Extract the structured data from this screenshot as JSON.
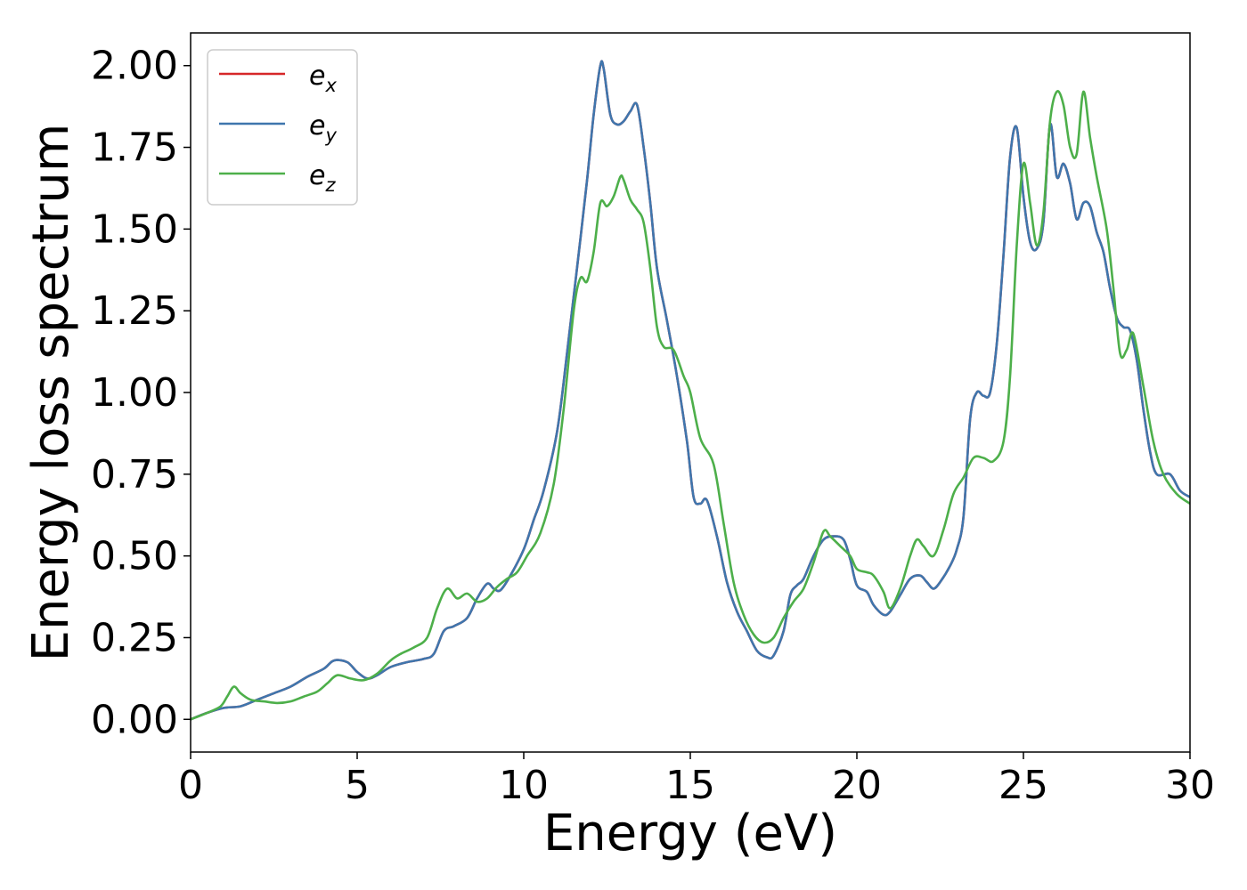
{
  "chart_data": {
    "type": "line",
    "title": "",
    "xlabel": "Energy (eV)",
    "ylabel": "Energy loss spectrum",
    "xlim": [
      0,
      30
    ],
    "ylim": [
      -0.1,
      2.1
    ],
    "grid": false,
    "legend_position": "top-left",
    "xticks": [
      0,
      5,
      10,
      15,
      20,
      25,
      30
    ],
    "xtick_labels": [
      "0",
      "5",
      "10",
      "15",
      "20",
      "25",
      "30"
    ],
    "yticks": [
      0.0,
      0.25,
      0.5,
      0.75,
      1.0,
      1.25,
      1.5,
      1.75,
      2.0
    ],
    "ytick_labels": [
      "0.00",
      "0.25",
      "0.50",
      "0.75",
      "1.00",
      "1.25",
      "1.50",
      "1.75",
      "2.00"
    ],
    "series": [
      {
        "name": "e",
        "name_sub": "x",
        "color": "#d62728",
        "x": [
          0,
          0.5,
          1.0,
          1.5,
          2.0,
          2.5,
          3.0,
          3.5,
          4.0,
          4.3,
          4.7,
          5.0,
          5.3,
          5.6,
          6.0,
          6.5,
          7.0,
          7.3,
          7.6,
          7.9,
          8.3,
          8.6,
          8.9,
          9.1,
          9.3,
          9.6,
          10.0,
          10.3,
          10.6,
          11.0,
          11.3,
          11.6,
          11.9,
          12.1,
          12.3,
          12.4,
          12.6,
          12.8,
          13.0,
          13.2,
          13.4,
          13.6,
          13.8,
          14.0,
          14.3,
          14.6,
          14.9,
          15.1,
          15.3,
          15.5,
          15.8,
          16.1,
          16.4,
          16.7,
          17.0,
          17.3,
          17.5,
          17.8,
          18.0,
          18.2,
          18.4,
          18.7,
          19.0,
          19.3,
          19.6,
          19.8,
          20.0,
          20.3,
          20.5,
          20.8,
          21.0,
          21.3,
          21.6,
          21.9,
          22.1,
          22.3,
          22.5,
          22.8,
          23.0,
          23.2,
          23.4,
          23.6,
          23.8,
          24.0,
          24.2,
          24.4,
          24.6,
          24.8,
          25.0,
          25.2,
          25.4,
          25.6,
          25.8,
          26.0,
          26.2,
          26.4,
          26.6,
          26.8,
          27.0,
          27.2,
          27.4,
          27.6,
          27.8,
          28.0,
          28.2,
          28.4,
          28.6,
          28.8,
          29.0,
          29.4,
          29.7,
          30.0
        ],
        "y": [
          0.0,
          0.02,
          0.035,
          0.04,
          0.06,
          0.08,
          0.1,
          0.13,
          0.155,
          0.18,
          0.175,
          0.145,
          0.125,
          0.135,
          0.16,
          0.175,
          0.185,
          0.2,
          0.27,
          0.285,
          0.31,
          0.37,
          0.415,
          0.4,
          0.395,
          0.44,
          0.52,
          0.61,
          0.7,
          0.88,
          1.12,
          1.38,
          1.65,
          1.85,
          2.0,
          1.99,
          1.85,
          1.82,
          1.83,
          1.86,
          1.88,
          1.75,
          1.58,
          1.38,
          1.22,
          1.05,
          0.85,
          0.68,
          0.66,
          0.67,
          0.56,
          0.42,
          0.33,
          0.27,
          0.21,
          0.19,
          0.195,
          0.27,
          0.38,
          0.41,
          0.43,
          0.5,
          0.55,
          0.56,
          0.55,
          0.49,
          0.41,
          0.39,
          0.35,
          0.32,
          0.33,
          0.38,
          0.43,
          0.44,
          0.42,
          0.4,
          0.42,
          0.47,
          0.52,
          0.62,
          0.92,
          1.0,
          0.99,
          1.0,
          1.15,
          1.42,
          1.72,
          1.81,
          1.6,
          1.46,
          1.44,
          1.52,
          1.82,
          1.66,
          1.7,
          1.64,
          1.53,
          1.58,
          1.57,
          1.49,
          1.43,
          1.32,
          1.23,
          1.2,
          1.19,
          1.1,
          0.95,
          0.82,
          0.75,
          0.75,
          0.7,
          0.68
        ]
      },
      {
        "name": "e",
        "name_sub": "y",
        "color": "#3f76ad",
        "x": [
          0,
          0.5,
          1.0,
          1.5,
          2.0,
          2.5,
          3.0,
          3.5,
          4.0,
          4.3,
          4.7,
          5.0,
          5.3,
          5.6,
          6.0,
          6.5,
          7.0,
          7.3,
          7.6,
          7.9,
          8.3,
          8.6,
          8.9,
          9.1,
          9.3,
          9.6,
          10.0,
          10.3,
          10.6,
          11.0,
          11.3,
          11.6,
          11.9,
          12.1,
          12.3,
          12.4,
          12.6,
          12.8,
          13.0,
          13.2,
          13.4,
          13.6,
          13.8,
          14.0,
          14.3,
          14.6,
          14.9,
          15.1,
          15.3,
          15.5,
          15.8,
          16.1,
          16.4,
          16.7,
          17.0,
          17.3,
          17.5,
          17.8,
          18.0,
          18.2,
          18.4,
          18.7,
          19.0,
          19.3,
          19.6,
          19.8,
          20.0,
          20.3,
          20.5,
          20.8,
          21.0,
          21.3,
          21.6,
          21.9,
          22.1,
          22.3,
          22.5,
          22.8,
          23.0,
          23.2,
          23.4,
          23.6,
          23.8,
          24.0,
          24.2,
          24.4,
          24.6,
          24.8,
          25.0,
          25.2,
          25.4,
          25.6,
          25.8,
          26.0,
          26.2,
          26.4,
          26.6,
          26.8,
          27.0,
          27.2,
          27.4,
          27.6,
          27.8,
          28.0,
          28.2,
          28.4,
          28.6,
          28.8,
          29.0,
          29.4,
          29.7,
          30.0
        ],
        "y": [
          0.0,
          0.02,
          0.035,
          0.04,
          0.06,
          0.08,
          0.1,
          0.13,
          0.155,
          0.18,
          0.175,
          0.145,
          0.125,
          0.135,
          0.16,
          0.175,
          0.185,
          0.2,
          0.27,
          0.285,
          0.31,
          0.37,
          0.415,
          0.4,
          0.395,
          0.44,
          0.52,
          0.61,
          0.7,
          0.88,
          1.12,
          1.38,
          1.65,
          1.85,
          2.0,
          1.99,
          1.85,
          1.82,
          1.83,
          1.86,
          1.88,
          1.75,
          1.58,
          1.38,
          1.22,
          1.05,
          0.85,
          0.68,
          0.66,
          0.67,
          0.56,
          0.42,
          0.33,
          0.27,
          0.21,
          0.19,
          0.195,
          0.27,
          0.38,
          0.41,
          0.43,
          0.5,
          0.55,
          0.56,
          0.55,
          0.49,
          0.41,
          0.39,
          0.35,
          0.32,
          0.33,
          0.38,
          0.43,
          0.44,
          0.42,
          0.4,
          0.42,
          0.47,
          0.52,
          0.62,
          0.92,
          1.0,
          0.99,
          1.0,
          1.15,
          1.42,
          1.72,
          1.81,
          1.6,
          1.46,
          1.44,
          1.52,
          1.82,
          1.66,
          1.7,
          1.64,
          1.53,
          1.58,
          1.57,
          1.49,
          1.43,
          1.32,
          1.23,
          1.2,
          1.19,
          1.1,
          0.95,
          0.82,
          0.75,
          0.75,
          0.7,
          0.68
        ]
      },
      {
        "name": "e",
        "name_sub": "z",
        "color": "#4daf4a",
        "x": [
          0,
          0.5,
          0.9,
          1.1,
          1.3,
          1.5,
          1.8,
          2.2,
          2.6,
          3.0,
          3.4,
          3.8,
          4.1,
          4.4,
          4.8,
          5.2,
          5.6,
          6.0,
          6.3,
          6.7,
          7.1,
          7.4,
          7.7,
          8.0,
          8.3,
          8.6,
          8.9,
          9.2,
          9.5,
          9.8,
          10.1,
          10.5,
          10.9,
          11.2,
          11.5,
          11.7,
          11.9,
          12.1,
          12.3,
          12.5,
          12.7,
          12.9,
          13.0,
          13.2,
          13.4,
          13.6,
          13.8,
          14.0,
          14.2,
          14.5,
          14.8,
          15.0,
          15.3,
          15.7,
          16.0,
          16.3,
          16.6,
          16.9,
          17.2,
          17.5,
          17.8,
          18.1,
          18.4,
          18.7,
          19.0,
          19.2,
          19.5,
          19.8,
          20.0,
          20.3,
          20.5,
          20.8,
          21.0,
          21.3,
          21.6,
          21.8,
          22.0,
          22.3,
          22.6,
          22.9,
          23.2,
          23.5,
          23.8,
          24.1,
          24.4,
          24.6,
          24.8,
          25.0,
          25.2,
          25.4,
          25.6,
          25.8,
          26.0,
          26.2,
          26.4,
          26.6,
          26.8,
          27.0,
          27.2,
          27.5,
          27.7,
          27.9,
          28.1,
          28.3,
          28.6,
          28.9,
          29.2,
          29.6,
          30.0
        ],
        "y": [
          0.0,
          0.02,
          0.04,
          0.07,
          0.1,
          0.08,
          0.06,
          0.055,
          0.05,
          0.055,
          0.07,
          0.085,
          0.11,
          0.135,
          0.125,
          0.12,
          0.14,
          0.18,
          0.2,
          0.22,
          0.25,
          0.34,
          0.4,
          0.37,
          0.385,
          0.36,
          0.37,
          0.405,
          0.43,
          0.45,
          0.5,
          0.57,
          0.72,
          0.95,
          1.25,
          1.35,
          1.34,
          1.43,
          1.58,
          1.57,
          1.6,
          1.66,
          1.65,
          1.59,
          1.56,
          1.52,
          1.38,
          1.2,
          1.14,
          1.13,
          1.05,
          1.0,
          0.86,
          0.78,
          0.6,
          0.42,
          0.32,
          0.26,
          0.235,
          0.25,
          0.31,
          0.36,
          0.4,
          0.48,
          0.575,
          0.56,
          0.53,
          0.5,
          0.46,
          0.45,
          0.44,
          0.39,
          0.34,
          0.4,
          0.5,
          0.55,
          0.53,
          0.5,
          0.58,
          0.69,
          0.74,
          0.8,
          0.8,
          0.79,
          0.85,
          1.05,
          1.45,
          1.7,
          1.58,
          1.45,
          1.55,
          1.83,
          1.92,
          1.88,
          1.75,
          1.73,
          1.92,
          1.78,
          1.66,
          1.5,
          1.32,
          1.12,
          1.13,
          1.18,
          1.02,
          0.85,
          0.75,
          0.69,
          0.66
        ]
      }
    ]
  }
}
